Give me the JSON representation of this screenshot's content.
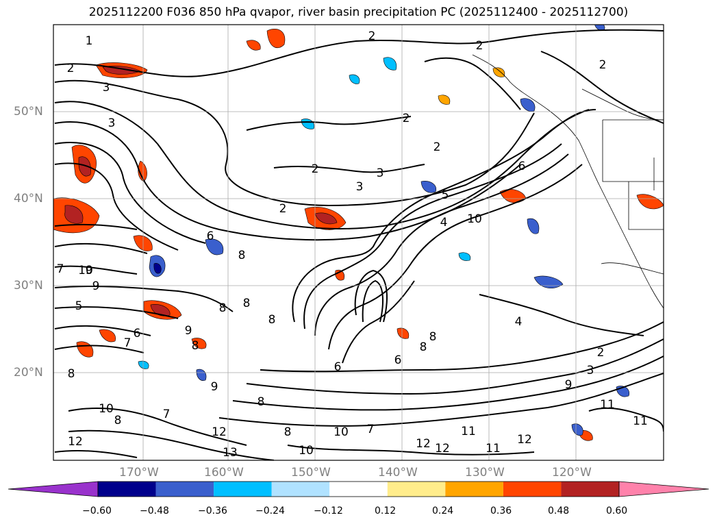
{
  "title": "2025112200 F036 850 hPa qvapor, river basin precipitation PC (2025112400 - 2025112700)",
  "lat_labels": [
    "50°N",
    "40°N",
    "30°N",
    "20°N"
  ],
  "lon_labels": [
    "170°W",
    "160°W",
    "150°W",
    "140°W",
    "130°W",
    "120°W"
  ],
  "colorbar": {
    "ticks": [
      "−0.60",
      "−0.48",
      "−0.36",
      "−0.24",
      "−0.12",
      "0.12",
      "0.24",
      "0.36",
      "0.48",
      "0.60"
    ],
    "colors": [
      "#9932cc",
      "#00008b",
      "#3a5fcd",
      "#00bfff",
      "#b0e2ff",
      "#ffffff",
      "#ffec8b",
      "#ffa500",
      "#ff4500",
      "#b22222",
      "#ff82ab"
    ]
  },
  "contour_labels": [
    "2",
    "1",
    "2",
    "3",
    "3",
    "2",
    "2",
    "3",
    "2",
    "2",
    "2",
    "2",
    "3",
    "5",
    "6",
    "4",
    "10",
    "6",
    "8",
    "9",
    "10",
    "9",
    "5",
    "7",
    "8",
    "8",
    "6",
    "8",
    "9",
    "8",
    "6",
    "6",
    "8",
    "7",
    "8",
    "9",
    "8",
    "4",
    "2",
    "3",
    "9",
    "8",
    "10",
    "8",
    "7",
    "10",
    "8",
    "7",
    "12",
    "12",
    "10",
    "12",
    "11",
    "11",
    "13",
    "12",
    "12",
    "11",
    "11"
  ]
}
